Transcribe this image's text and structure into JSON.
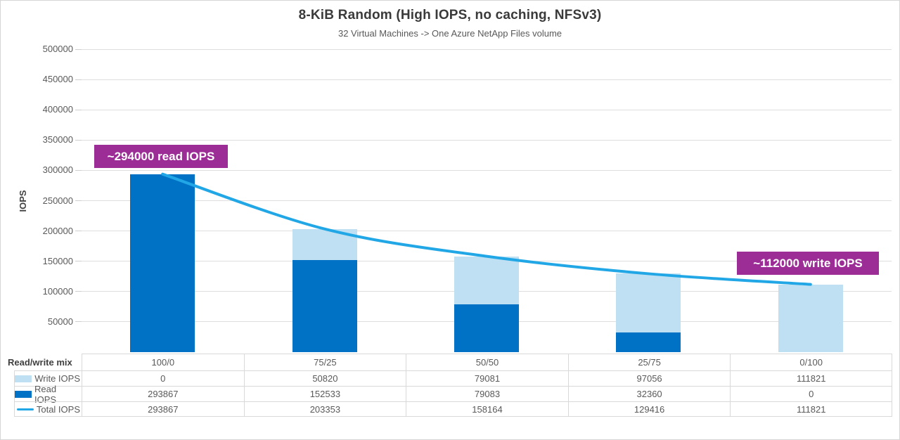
{
  "chart_data": {
    "type": "composed",
    "bar_mode": "stacked",
    "title": "8-KiB Random (High IOPS, no caching, NFSv3)",
    "subtitle": "32 Virtual Machines -> One Azure NetApp Files volume",
    "xlabel": "Read/write mix",
    "ylabel": "IOPS",
    "ylim": [
      0,
      500000
    ],
    "ytick_step": 50000,
    "grid": true,
    "legend_position": "data-table-below-chart",
    "categories": [
      "100/0",
      "75/25",
      "50/50",
      "25/75",
      "0/100"
    ],
    "series": [
      {
        "name": "Write IOPS",
        "type": "bar",
        "color": "#BEE0F2",
        "values": [
          0,
          50820,
          79081,
          97056,
          111821
        ]
      },
      {
        "name": "Read IOPS",
        "type": "bar",
        "color": "#0072C6",
        "values": [
          293867,
          152533,
          79083,
          32360,
          0
        ]
      },
      {
        "name": "Total IOPS",
        "type": "line",
        "color": "#22A7E6",
        "values": [
          293867,
          203353,
          158164,
          129416,
          111821
        ]
      }
    ],
    "stack_order_bottom_to_top": [
      "Read IOPS",
      "Write IOPS"
    ]
  },
  "table": {
    "row_header": "Read/write mix"
  },
  "annotations": {
    "read": "~294000 read IOPS",
    "write": "~112000 write IOPS",
    "background_color": "#9C2D96"
  },
  "colors": {
    "read_bar": "#0072C6",
    "write_bar": "#BEE0F2",
    "total_line": "#22A7E6",
    "annotation_bg": "#9C2D96",
    "gridline": "#DEDEDE",
    "table_border": "#D9D9D9",
    "text": "#595959"
  }
}
